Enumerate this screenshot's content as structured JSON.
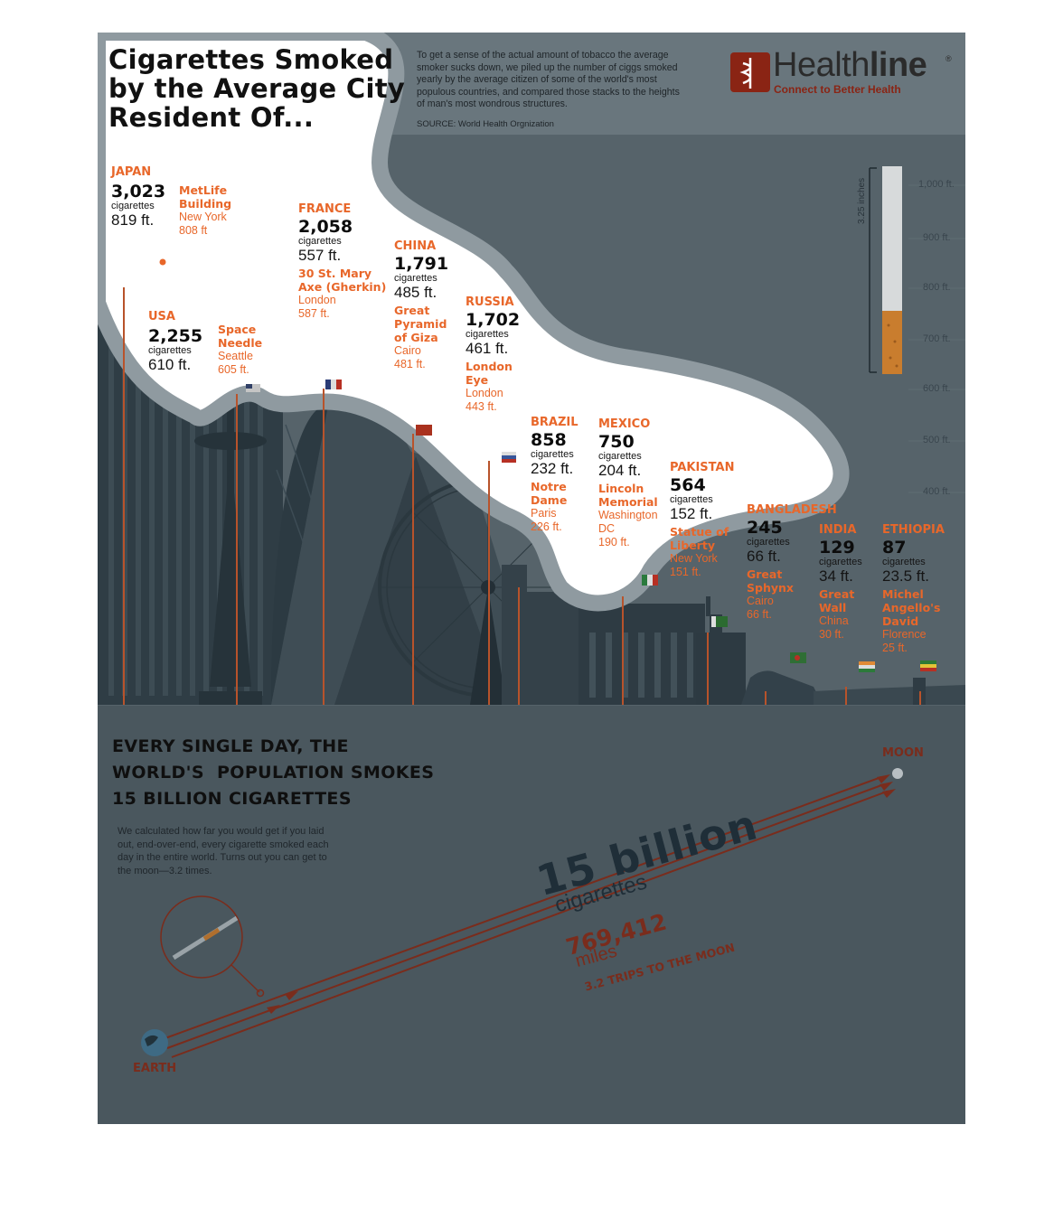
{
  "header": {
    "title_lines": [
      "Cigarettes Smoked",
      "by the Average City",
      "Resident Of..."
    ],
    "intro_lines": [
      "To get a sense of the actual amount of tobacco the average",
      "smoker sucks down, we piled up the number of ciggs smoked",
      "yearly by the average citizen of some of the world's most",
      "populous countries, and compared those stacks to the heights",
      "of man's most wondrous structures."
    ],
    "source": "SOURCE: World Health Orgnization"
  },
  "logo": {
    "word_light": "Health",
    "word_bold": "line",
    "registered": "®",
    "tagline": "Connect to Better Health"
  },
  "ruler": {
    "ticks": [
      "1,000 ft.",
      "900 ft.",
      "800 ft.",
      "700 ft.",
      "600 ft.",
      "500 ft.",
      "400 ft."
    ],
    "inches_label": "3.25 inches"
  },
  "countries": [
    {
      "name": "JAPAN",
      "count": "3,023",
      "unit": "cigarettes",
      "height": "819 ft.",
      "landmark": [
        "MetLife",
        "Building"
      ],
      "location": "New York",
      "landmark_height": "808 ft"
    },
    {
      "name": "USA",
      "count": "2,255",
      "unit": "cigarettes",
      "height": "610 ft.",
      "landmark": [
        "Space",
        "Needle"
      ],
      "location": "Seattle",
      "landmark_height": "605 ft."
    },
    {
      "name": "FRANCE",
      "count": "2,058",
      "unit": "cigarettes",
      "height": "557 ft.",
      "landmark": [
        "30 St. Mary",
        "Axe (Gherkin)"
      ],
      "location": "London",
      "landmark_height": "587 ft."
    },
    {
      "name": "CHINA",
      "count": "1,791",
      "unit": "cigarettes",
      "height": "485 ft.",
      "landmark": [
        "Great",
        "Pyramid",
        "of Giza"
      ],
      "location": "Cairo",
      "landmark_height": "481 ft."
    },
    {
      "name": "RUSSIA",
      "count": "1,702",
      "unit": "cigarettes",
      "height": "461 ft.",
      "landmark": [
        "London",
        "Eye"
      ],
      "location": "London",
      "landmark_height": "443 ft."
    },
    {
      "name": "BRAZIL",
      "count": "858",
      "unit": "cigarettes",
      "height": "232 ft.",
      "landmark": [
        "Notre",
        "Dame"
      ],
      "location": "Paris",
      "landmark_height": "226 ft."
    },
    {
      "name": "MEXICO",
      "count": "750",
      "unit": "cigarettes",
      "height": "204 ft.",
      "landmark": [
        "Lincoln",
        "Memorial"
      ],
      "location": [
        "Washington",
        "DC"
      ],
      "landmark_height": "190 ft."
    },
    {
      "name": "PAKISTAN",
      "count": "564",
      "unit": "cigarettes",
      "height": "152 ft.",
      "landmark": [
        "Statue of",
        "Liberty"
      ],
      "location": "New York",
      "landmark_height": "151 ft."
    },
    {
      "name": "BANGLADESH",
      "count": "245",
      "unit": "cigarettes",
      "height": "66 ft.",
      "landmark": [
        "Great",
        "Sphynx"
      ],
      "location": "Cairo",
      "landmark_height": "66 ft."
    },
    {
      "name": "INDIA",
      "count": "129",
      "unit": "cigarettes",
      "height": "34 ft.",
      "landmark": [
        "Great",
        "Wall"
      ],
      "location": "China",
      "landmark_height": "30 ft."
    },
    {
      "name": "ETHIOPIA",
      "count": "87",
      "unit": "cigarettes",
      "height": "23.5 ft.",
      "landmark": [
        "Michel",
        "Angello's",
        "David"
      ],
      "location": "Florence",
      "landmark_height": "25 ft."
    }
  ],
  "daily": {
    "headline_lines": [
      "EVERY SINGLE DAY, THE",
      "WORLD'S  POPULATION SMOKES",
      "15 BILLION CIGARETTES"
    ],
    "body_lines": [
      "We calculated how far you would get if you laid",
      "out, end-over-end, every cigarette smoked each",
      "day in the entire world. Turns out you can get to",
      "the moon—3.2 times."
    ],
    "big_number": "15 billion",
    "big_unit": "cigarettes",
    "distance": "769,412",
    "distance_unit": "miles",
    "trips": "3.2 TRIPS TO THE MOON",
    "moon_label": "MOON",
    "earth_label": "EARTH"
  },
  "colors": {
    "backdrop": "#4b5960",
    "header_band": "#69767d",
    "sky": "#56636a",
    "accent": "#e8672a",
    "arrow": "#7a2c1c",
    "highlight": "#ffffff",
    "highlight_border": "#8f9aa0"
  }
}
